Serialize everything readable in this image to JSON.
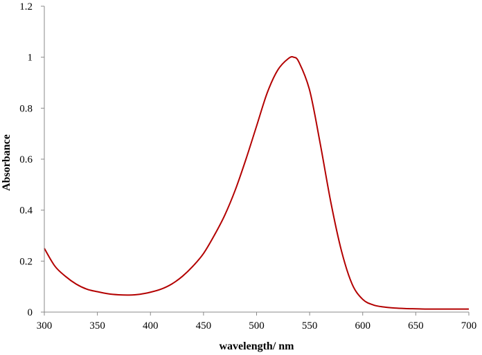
{
  "chart_data": {
    "type": "line",
    "xlabel": "wavelength/ nm",
    "ylabel": "Absorbance",
    "xlim": [
      300,
      700
    ],
    "ylim": [
      0,
      1.2
    ],
    "x_ticks": [
      300,
      350,
      400,
      450,
      500,
      550,
      600,
      650,
      700
    ],
    "y_ticks": [
      0,
      0.2,
      0.4,
      0.6,
      0.8,
      1,
      1.2
    ],
    "x_tick_labels": [
      "300",
      "350",
      "400",
      "450",
      "500",
      "550",
      "600",
      "650",
      "700"
    ],
    "y_tick_labels": [
      "0",
      "0.2",
      "0.4",
      "0.6",
      "0.8",
      "1",
      "1.2"
    ],
    "grid": false,
    "line_color": "#b30000",
    "series": [
      {
        "x": [
          300,
          310,
          320,
          330,
          340,
          350,
          360,
          370,
          380,
          390,
          400,
          410,
          420,
          430,
          440,
          450,
          460,
          470,
          480,
          490,
          500,
          510,
          520,
          530,
          535,
          540,
          550,
          560,
          570,
          580,
          590,
          600,
          610,
          620,
          630,
          640,
          650,
          660,
          670,
          680,
          690,
          700
        ],
        "y": [
          0.25,
          0.18,
          0.14,
          0.11,
          0.09,
          0.08,
          0.072,
          0.068,
          0.067,
          0.07,
          0.078,
          0.09,
          0.11,
          0.14,
          0.18,
          0.23,
          0.3,
          0.38,
          0.48,
          0.6,
          0.73,
          0.86,
          0.95,
          0.995,
          1.0,
          0.98,
          0.87,
          0.66,
          0.43,
          0.24,
          0.11,
          0.05,
          0.028,
          0.02,
          0.016,
          0.014,
          0.013,
          0.012,
          0.012,
          0.012,
          0.012,
          0.012
        ]
      }
    ]
  }
}
